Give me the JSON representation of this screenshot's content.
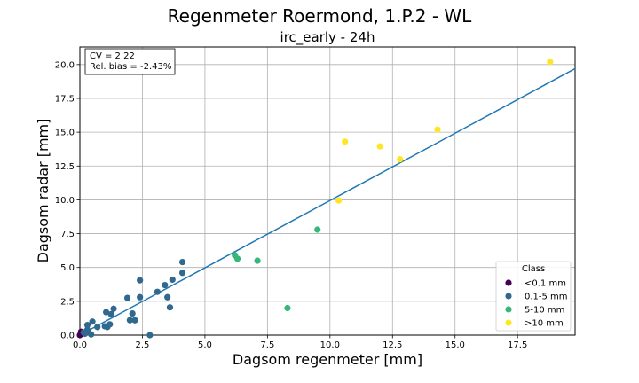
{
  "chart_data": {
    "type": "scatter",
    "title": "Regenmeter Roermond, 1.P.2 - WL",
    "subtitle": "irc_early - 24h",
    "xlabel": "Dagsom regenmeter [mm]",
    "ylabel": "Dagsom radar [mm]",
    "xlim": [
      0,
      19.8
    ],
    "ylim": [
      0,
      21.3
    ],
    "xticks": [
      "0.0",
      "2.5",
      "5.0",
      "7.5",
      "10.0",
      "12.5",
      "15.0",
      "17.5"
    ],
    "yticks": [
      "0.0",
      "2.5",
      "5.0",
      "7.5",
      "10.0",
      "12.5",
      "15.0",
      "17.5",
      "20.0"
    ],
    "grid": true,
    "stats": [
      "CV = 2.22",
      "Rel. bias = -2.43%"
    ],
    "trend_line": {
      "x": [
        0,
        19.8
      ],
      "y": [
        0,
        19.7
      ],
      "color": "#1f77b4"
    },
    "legend": {
      "title": "Class",
      "placement": "lower-right"
    },
    "series": [
      {
        "name": "<0.1 mm",
        "color": "#440154",
        "points": [
          [
            0.0,
            0.0
          ],
          [
            0.05,
            0.25
          ],
          [
            0.05,
            0.1
          ]
        ]
      },
      {
        "name": "0.1-5 mm",
        "color": "#31688e",
        "points": [
          [
            0.15,
            0.2
          ],
          [
            0.2,
            0.1
          ],
          [
            0.3,
            0.4
          ],
          [
            0.3,
            0.75
          ],
          [
            0.35,
            0.2
          ],
          [
            0.45,
            0.05
          ],
          [
            0.5,
            1.0
          ],
          [
            0.7,
            0.6
          ],
          [
            1.0,
            0.65
          ],
          [
            1.05,
            1.7
          ],
          [
            1.1,
            0.6
          ],
          [
            1.2,
            0.8
          ],
          [
            1.25,
            1.55
          ],
          [
            1.35,
            1.95
          ],
          [
            1.9,
            2.75
          ],
          [
            2.0,
            1.1
          ],
          [
            2.1,
            1.6
          ],
          [
            2.2,
            1.1
          ],
          [
            2.4,
            2.8
          ],
          [
            2.4,
            4.05
          ],
          [
            2.8,
            0.0
          ],
          [
            3.1,
            3.2
          ],
          [
            3.4,
            3.7
          ],
          [
            3.5,
            2.8
          ],
          [
            3.6,
            2.05
          ],
          [
            3.7,
            4.1
          ],
          [
            4.1,
            4.6
          ],
          [
            4.1,
            5.4
          ]
        ]
      },
      {
        "name": "5-10 mm",
        "color": "#35b779",
        "points": [
          [
            6.2,
            5.9
          ],
          [
            6.3,
            5.65
          ],
          [
            7.1,
            5.5
          ],
          [
            8.3,
            2.0
          ],
          [
            9.5,
            7.8
          ]
        ]
      },
      {
        "name": ">10 mm",
        "color": "#fde725",
        "points": [
          [
            10.35,
            9.95
          ],
          [
            10.6,
            14.3
          ],
          [
            12.0,
            13.95
          ],
          [
            12.8,
            13.0
          ],
          [
            14.3,
            15.2
          ],
          [
            18.8,
            20.2
          ]
        ]
      }
    ]
  }
}
